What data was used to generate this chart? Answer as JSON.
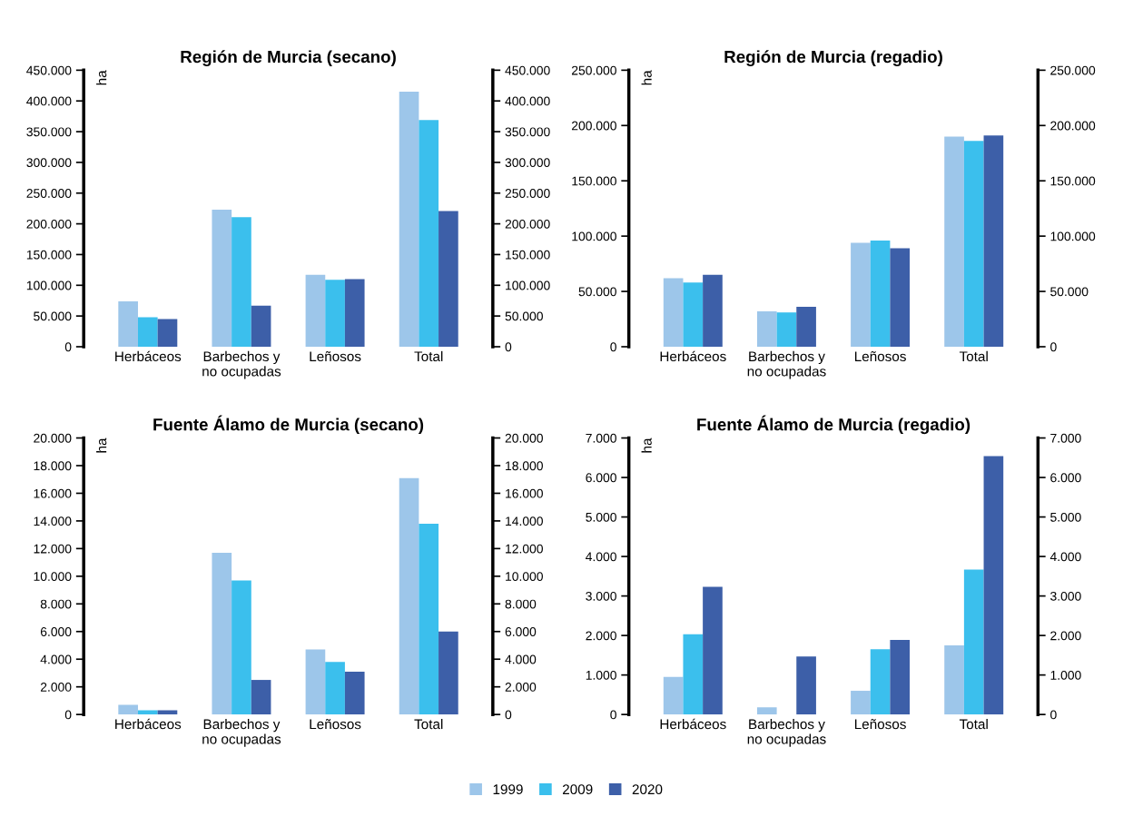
{
  "chart_data": [
    {
      "type": "bar",
      "title": "Región de Murcia (secano)",
      "ylabel": "ha",
      "categories": [
        "Herbáceos",
        "Barbechos y\nno ocupadas",
        "Leñosos",
        "Total"
      ],
      "series": [
        {
          "name": "1999",
          "color": "#9dc6ea",
          "values": [
            74000,
            223000,
            117000,
            415000
          ]
        },
        {
          "name": "2009",
          "color": "#3bbfed",
          "values": [
            48000,
            211000,
            109000,
            369000
          ]
        },
        {
          "name": "2020",
          "color": "#3d5fa8",
          "values": [
            45000,
            67000,
            110000,
            221000
          ]
        }
      ],
      "legend": "bottom",
      "ylim": [
        0,
        450000
      ],
      "yticks": [
        0,
        {
          "value": 50000,
          "label": "50.000"
        },
        {
          "value": 100000,
          "label": "100.000"
        },
        {
          "value": 150000,
          "label": "150.000"
        },
        {
          "value": 200000,
          "label": "200.000"
        },
        {
          "value": 250000,
          "label": "250.000"
        },
        {
          "value": 300000,
          "label": "300.000"
        },
        {
          "value": 350000,
          "label": "350.000"
        },
        {
          "value": 400000,
          "label": "400.000"
        },
        {
          "value": 450000,
          "label": "450.000"
        }
      ],
      "y2lim": [
        0,
        450000
      ],
      "y2ticks": [
        0,
        {
          "value": 50000,
          "label": "50.000"
        },
        {
          "value": 100000,
          "label": "100.000"
        },
        {
          "value": 150000,
          "label": "150.000"
        },
        {
          "value": 200000,
          "label": "200.000"
        },
        {
          "value": 250000,
          "label": "250.000"
        },
        {
          "value": 300000,
          "label": "300.000"
        },
        {
          "value": 350000,
          "label": "350.000"
        },
        {
          "value": 400000,
          "label": "400.000"
        },
        {
          "value": 450000,
          "label": "450.000"
        }
      ]
    },
    {
      "type": "bar",
      "title": "Región de Murcia (regadio)",
      "ylabel": "ha",
      "categories": [
        "Herbáceos",
        "Barbechos y\nno ocupadas",
        "Leñosos",
        "Total"
      ],
      "series": [
        {
          "color": "#9dc6ea",
          "values": [
            62000,
            32000,
            94000,
            190000
          ]
        },
        {
          "color": "#3bbfed",
          "values": [
            58000,
            31000,
            96000,
            186000
          ]
        },
        {
          "color": "#3d5fa8",
          "values": [
            65000,
            36000,
            89000,
            191000
          ]
        }
      ],
      "ylim": [
        0,
        250000
      ],
      "yticks": [
        0,
        {
          "value": 50000,
          "label": "50.000"
        },
        {
          "value": 100000,
          "label": "100.000"
        },
        {
          "value": 150000,
          "label": "150.000"
        },
        {
          "value": 200000,
          "label": "200.000"
        },
        {
          "value": 250000,
          "label": "250.000"
        }
      ],
      "y2lim": [
        0,
        250000
      ],
      "y2ticks": [
        0,
        {
          "value": 50000,
          "label": "50.000"
        },
        {
          "value": 100000,
          "label": "100.000"
        },
        {
          "value": 150000,
          "label": "150.000"
        },
        {
          "value": 200000,
          "label": "200.000"
        },
        {
          "value": 250000,
          "label": "250.000"
        }
      ]
    },
    {
      "type": "bar",
      "title": "Fuente Álamo de Murcia (secano)",
      "ylabel": "ha",
      "categories": [
        "Herbáceos",
        "Barbechos y\nno ocupadas",
        "Leñosos",
        "Total"
      ],
      "series": [
        {
          "color": "#9dc6ea",
          "values": [
            700,
            11700,
            4700,
            17100
          ]
        },
        {
          "color": "#3bbfed",
          "values": [
            300,
            9700,
            3800,
            13800
          ]
        },
        {
          "color": "#3d5fa8",
          "values": [
            300,
            2500,
            3100,
            6000
          ]
        }
      ],
      "ylim": [
        0,
        20000
      ],
      "yticks": [
        0,
        {
          "value": 2000,
          "label": "2.000"
        },
        {
          "value": 4000,
          "label": "4.000"
        },
        {
          "value": 6000,
          "label": "6.000"
        },
        {
          "value": 8000,
          "label": "8.000"
        },
        {
          "value": 10000,
          "label": "10.000"
        },
        {
          "value": 12000,
          "label": "12.000"
        },
        {
          "value": 14000,
          "label": "14.000"
        },
        {
          "value": 16000,
          "label": "16.000"
        },
        {
          "value": 18000,
          "label": "18.000"
        },
        {
          "value": 20000,
          "label": "20.000"
        }
      ],
      "y2lim": [
        0,
        20000
      ],
      "y2ticks": [
        0,
        {
          "value": 2000,
          "label": "2.000"
        },
        {
          "value": 4000,
          "label": "4.000"
        },
        {
          "value": 6000,
          "label": "6.000"
        },
        {
          "value": 8000,
          "label": "8.000"
        },
        {
          "value": 10000,
          "label": "10.000"
        },
        {
          "value": 12000,
          "label": "12.000"
        },
        {
          "value": 14000,
          "label": "14.000"
        },
        {
          "value": 16000,
          "label": "16.000"
        },
        {
          "value": 18000,
          "label": "18.000"
        },
        {
          "value": 20000,
          "label": "20.000"
        }
      ]
    },
    {
      "type": "bar",
      "title": "Fuente Álamo de Murcia (regadio)",
      "ylabel": "ha",
      "categories": [
        "Herbáceos",
        "Barbechos y\nno ocupadas",
        "Leñosos",
        "Total"
      ],
      "series": [
        {
          "color": "#9dc6ea",
          "values": [
            950,
            180,
            600,
            1750
          ]
        },
        {
          "color": "#3bbfed",
          "values": [
            2030,
            null,
            1650,
            3670
          ]
        },
        {
          "color": "#3d5fa8",
          "values": [
            3230,
            1470,
            1890,
            6540
          ]
        }
      ],
      "ylim": [
        0,
        7000
      ],
      "yticks": [
        0,
        {
          "value": 1000,
          "label": "1.000"
        },
        {
          "value": 2000,
          "label": "2.000"
        },
        {
          "value": 3000,
          "label": "3.000"
        },
        {
          "value": 4000,
          "label": "4.000"
        },
        {
          "value": 5000,
          "label": "5.000"
        },
        {
          "value": 6000,
          "label": "6.000"
        },
        {
          "value": 7000,
          "label": "7.000"
        }
      ],
      "y2lim": [
        0,
        7000
      ],
      "y2ticks": [
        0,
        {
          "value": 1000,
          "label": "1.000"
        },
        {
          "value": 2000,
          "label": "2.000"
        },
        {
          "value": 3000,
          "label": "3.000"
        },
        {
          "value": 4000,
          "label": "4.000"
        },
        {
          "value": 5000,
          "label": "5.000"
        },
        {
          "value": 6000,
          "label": "6.000"
        },
        {
          "value": 7000,
          "label": "7.000"
        }
      ]
    }
  ]
}
